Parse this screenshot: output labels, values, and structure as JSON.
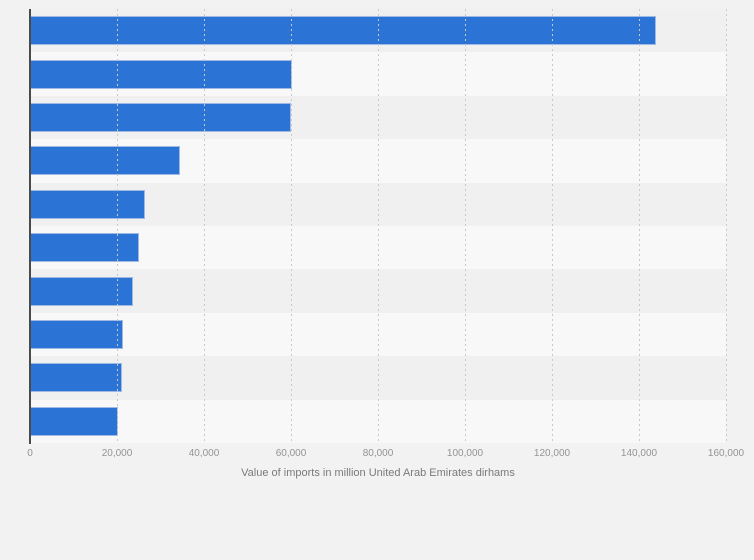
{
  "chart_data": {
    "type": "bar",
    "orientation": "horizontal",
    "title": "",
    "xlabel": "Value of imports in million United Arab Emirates dirhams",
    "ylabel": "",
    "values": [
      143900,
      60300,
      60000,
      34500,
      26500,
      25000,
      23600,
      21300,
      21200,
      20200
    ],
    "xlim": [
      0,
      160000
    ],
    "x_tick_step": 20000,
    "x_tick_labels": [
      "0",
      "20,000",
      "40,000",
      "60,000",
      "80,000",
      "100,000",
      "120,000",
      "140,000",
      "160,000"
    ],
    "grid": "vertical-dotted",
    "legend": "none",
    "category_labels_visible": false,
    "colors": {
      "bar": "#2c73d6",
      "bar_border": "#9db9e4",
      "canvas": "#f2f2f2",
      "stripe_dark": "#f0f0f0",
      "stripe_light": "#f8f8f8",
      "gridline": "#c9c9c9",
      "axis_line": "#4a4a4a",
      "tick_label": "#949494",
      "axis_title": "#7a7a7a"
    }
  }
}
